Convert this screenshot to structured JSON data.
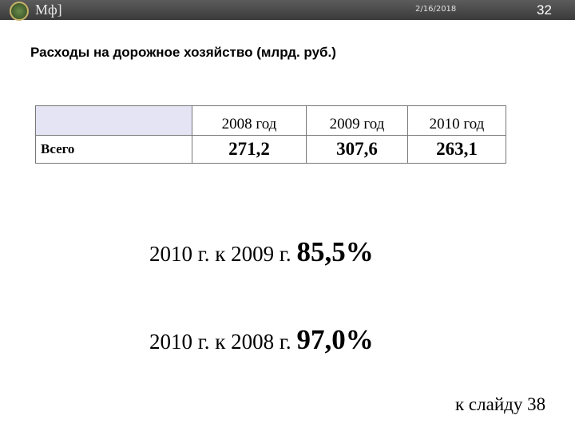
{
  "header": {
    "logo_text": "Мф]",
    "date": "2/16/2018",
    "page_number": "32"
  },
  "title": "Расходы на дорожное хозяйство (млрд. руб.)",
  "table": {
    "columns": [
      "2008 год",
      "2009 год",
      "2010 год"
    ],
    "rows": [
      [
        "Всего",
        "271,2",
        "307,6",
        "263,1"
      ]
    ]
  },
  "comparisons": [
    {
      "label": "2010 г. к 2009 г.",
      "value": "85,5%"
    },
    {
      "label": "2010 г. к 2008 г.",
      "value": "97,0%"
    }
  ],
  "link": "к слайду 38"
}
